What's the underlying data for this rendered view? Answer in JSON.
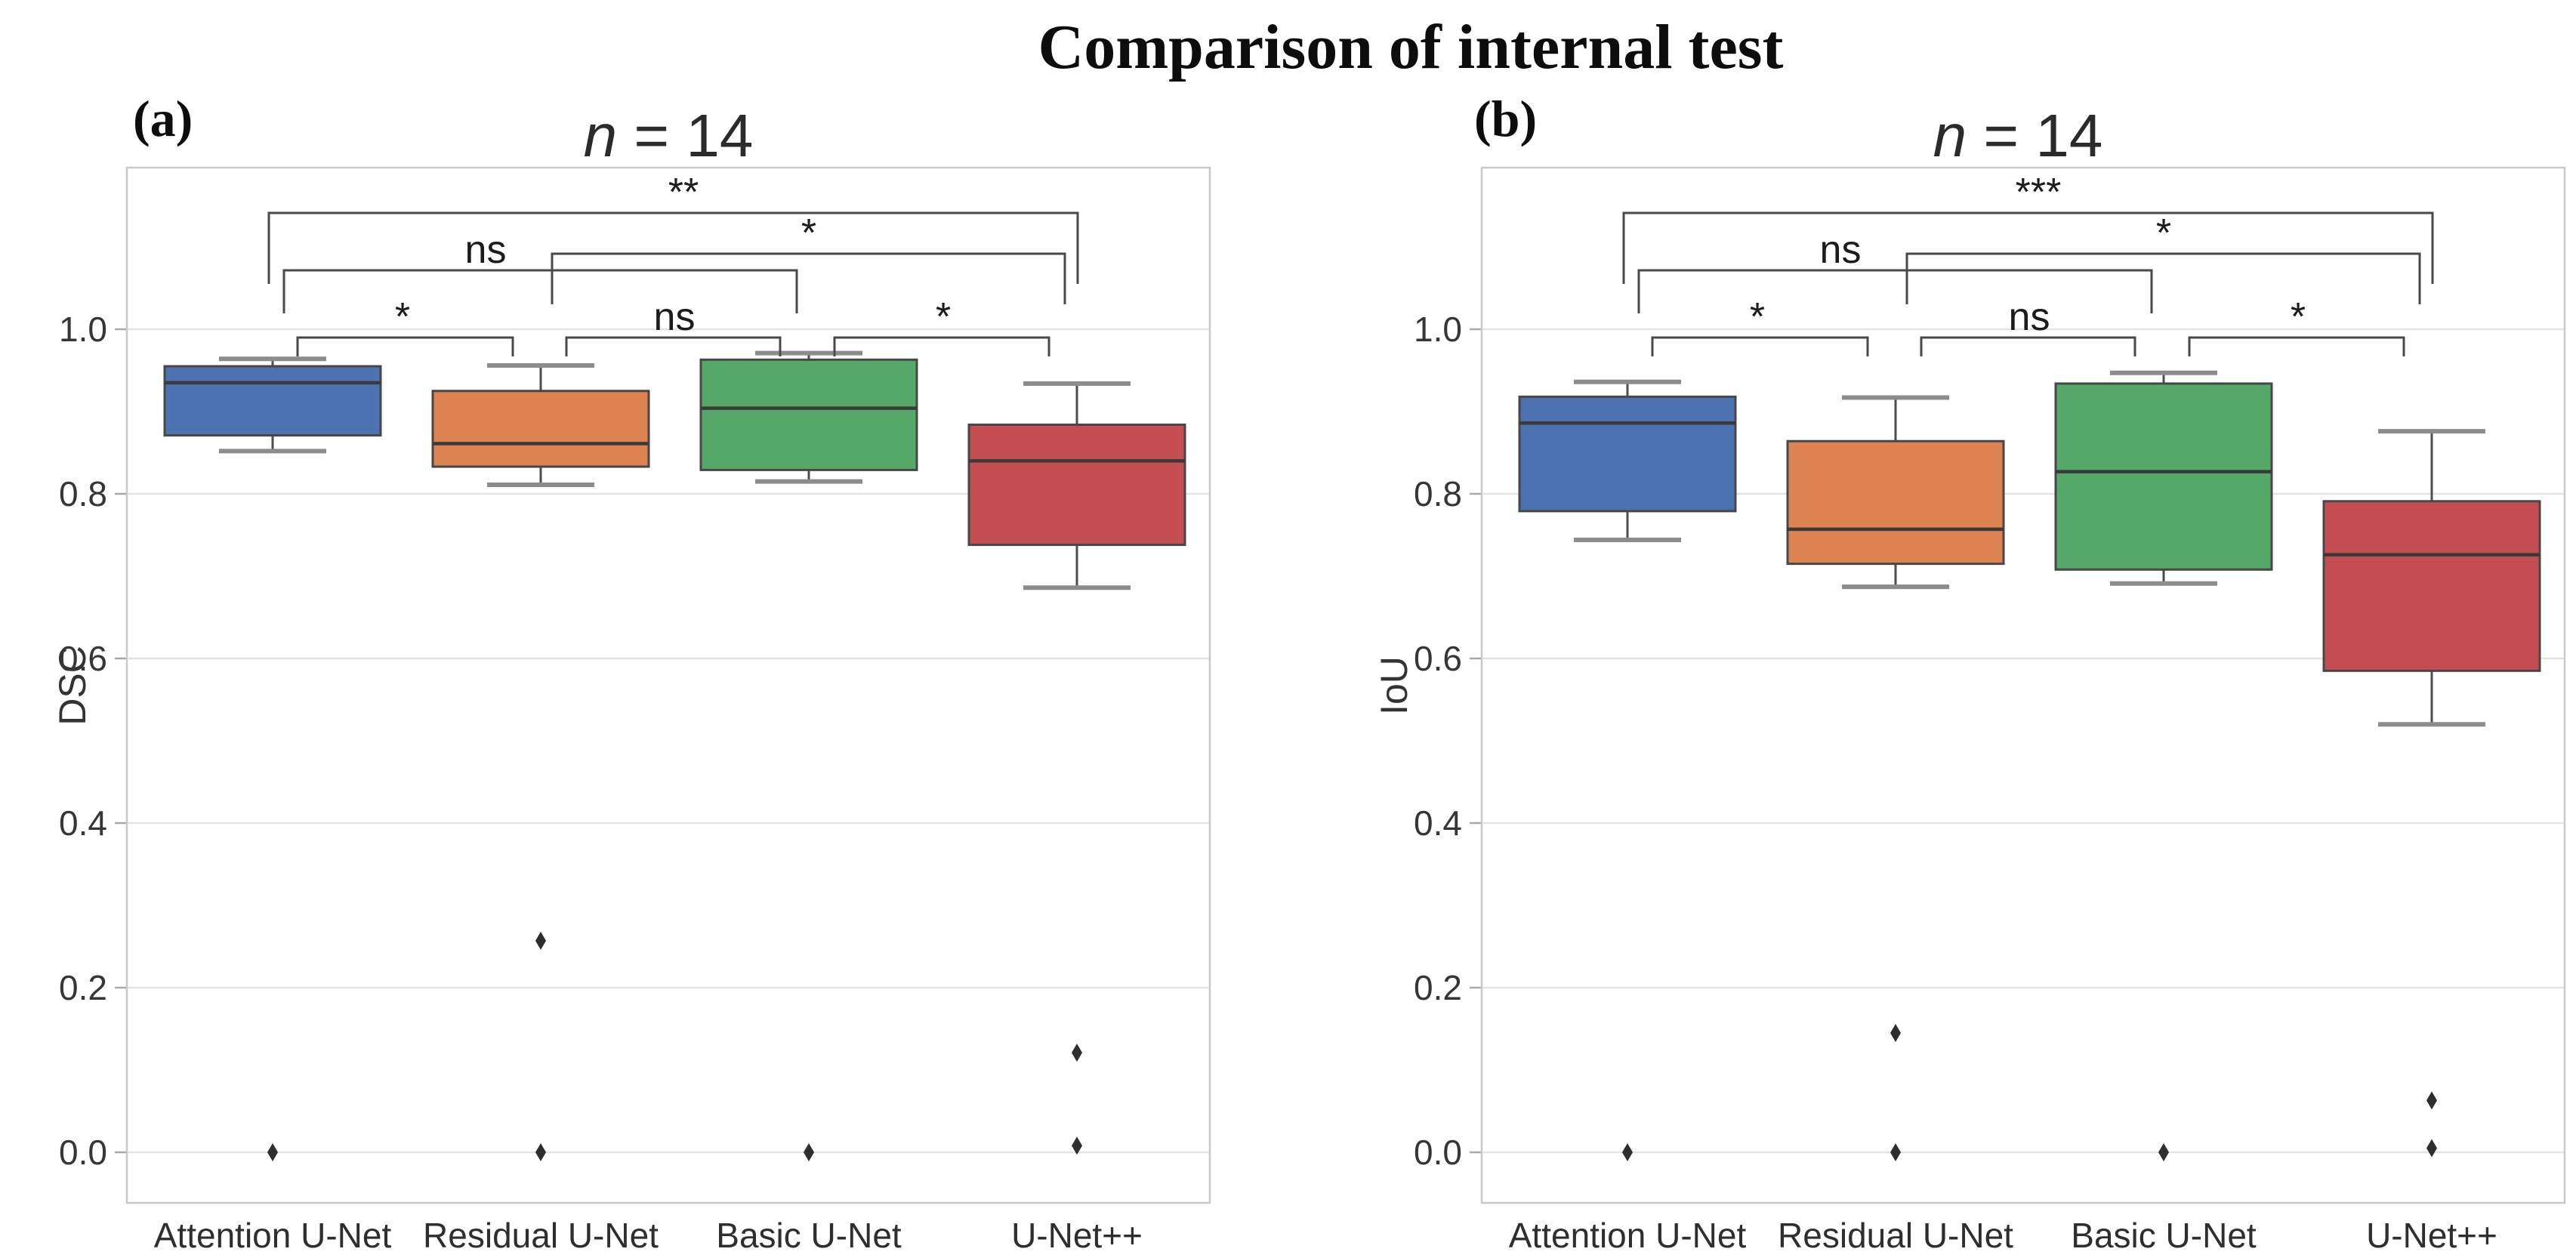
{
  "figure": {
    "title": "Comparison of internal test",
    "panel_letters": [
      "(a)",
      "(b)"
    ]
  },
  "chart_data": [
    {
      "type": "box",
      "panel": "a",
      "title": "n = 14",
      "title_italic_var": "n",
      "title_rest": " = 14",
      "ylabel": "DSC",
      "ylim": [
        -0.06,
        1.2
      ],
      "yticks": [
        "0.0",
        "0.2",
        "0.4",
        "0.6",
        "0.8",
        "1.0"
      ],
      "ytick_values": [
        0.0,
        0.2,
        0.4,
        0.6,
        0.8,
        1.0
      ],
      "grid": true,
      "legend": "none",
      "categories": [
        "Attention U-Net",
        "Residual U-Net",
        "Basic U-Net",
        "U-Net++"
      ],
      "series": [
        {
          "name": "Attention U-Net",
          "color": "#4C72B0",
          "whisker_low": 0.852,
          "q1": 0.871,
          "median": 0.935,
          "q3": 0.955,
          "whisker_high": 0.964,
          "outliers": [
            0.0
          ]
        },
        {
          "name": "Residual U-Net",
          "color": "#DD8452",
          "whisker_low": 0.811,
          "q1": 0.833,
          "median": 0.861,
          "q3": 0.925,
          "whisker_high": 0.956,
          "outliers": [
            0.257,
            0.0
          ]
        },
        {
          "name": "Basic U-Net",
          "color": "#55A868",
          "whisker_low": 0.815,
          "q1": 0.829,
          "median": 0.904,
          "q3": 0.963,
          "whisker_high": 0.971,
          "outliers": [
            0.0
          ]
        },
        {
          "name": "U-Net++",
          "color": "#C44E52",
          "whisker_low": 0.686,
          "q1": 0.738,
          "median": 0.84,
          "q3": 0.884,
          "whisker_high": 0.934,
          "outliers": [
            0.121,
            0.008
          ]
        }
      ],
      "significance": [
        {
          "between": [
            "Attention U-Net",
            "Residual U-Net"
          ],
          "label": "*"
        },
        {
          "between": [
            "Residual U-Net",
            "Basic U-Net"
          ],
          "label": "ns"
        },
        {
          "between": [
            "Basic U-Net",
            "U-Net++"
          ],
          "label": "*"
        },
        {
          "between": [
            "Attention U-Net",
            "Basic U-Net"
          ],
          "label": "ns"
        },
        {
          "between": [
            "Residual U-Net",
            "U-Net++"
          ],
          "label": "*"
        },
        {
          "between": [
            "Attention U-Net",
            "U-Net++"
          ],
          "label": "**"
        }
      ]
    },
    {
      "type": "box",
      "panel": "b",
      "title": "n = 14",
      "title_italic_var": "n",
      "title_rest": " = 14",
      "ylabel": "IoU",
      "ylim": [
        -0.06,
        1.2
      ],
      "yticks": [
        "0.0",
        "0.2",
        "0.4",
        "0.6",
        "0.8",
        "1.0"
      ],
      "ytick_values": [
        0.0,
        0.2,
        0.4,
        0.6,
        0.8,
        1.0
      ],
      "grid": true,
      "legend": "none",
      "categories": [
        "Attention U-Net",
        "Residual U-Net",
        "Basic U-Net",
        "U-Net++"
      ],
      "series": [
        {
          "name": "Attention U-Net",
          "color": "#4C72B0",
          "whisker_low": 0.744,
          "q1": 0.779,
          "median": 0.886,
          "q3": 0.918,
          "whisker_high": 0.936,
          "outliers": [
            0.0
          ]
        },
        {
          "name": "Residual U-Net",
          "color": "#DD8452",
          "whisker_low": 0.687,
          "q1": 0.715,
          "median": 0.757,
          "q3": 0.864,
          "whisker_high": 0.917,
          "outliers": [
            0.145,
            0.0
          ]
        },
        {
          "name": "Basic U-Net",
          "color": "#55A868",
          "whisker_low": 0.691,
          "q1": 0.708,
          "median": 0.827,
          "q3": 0.934,
          "whisker_high": 0.947,
          "outliers": [
            0.0
          ]
        },
        {
          "name": "U-Net++",
          "color": "#C44E52",
          "whisker_low": 0.52,
          "q1": 0.585,
          "median": 0.726,
          "q3": 0.791,
          "whisker_high": 0.876,
          "outliers": [
            0.063,
            0.005
          ]
        }
      ],
      "significance": [
        {
          "between": [
            "Attention U-Net",
            "Residual U-Net"
          ],
          "label": "*"
        },
        {
          "between": [
            "Residual U-Net",
            "Basic U-Net"
          ],
          "label": "ns"
        },
        {
          "between": [
            "Basic U-Net",
            "U-Net++"
          ],
          "label": "*"
        },
        {
          "between": [
            "Attention U-Net",
            "Basic U-Net"
          ],
          "label": "ns"
        },
        {
          "between": [
            "Residual U-Net",
            "U-Net++"
          ],
          "label": "*"
        },
        {
          "between": [
            "Attention U-Net",
            "U-Net++"
          ],
          "label": "***"
        }
      ]
    }
  ],
  "style": {
    "box_edge_color": "#474747",
    "median_color": "#3a3a3a",
    "whisker_color": "#4d4d4d",
    "cap_color": "#8c8c8c",
    "outlier_color": "#2e2e2e",
    "bracket_color": "#4a4a4a",
    "grid_color": "#e4e4e4",
    "border_color": "#c9c9c9",
    "background": "#ffffff"
  }
}
